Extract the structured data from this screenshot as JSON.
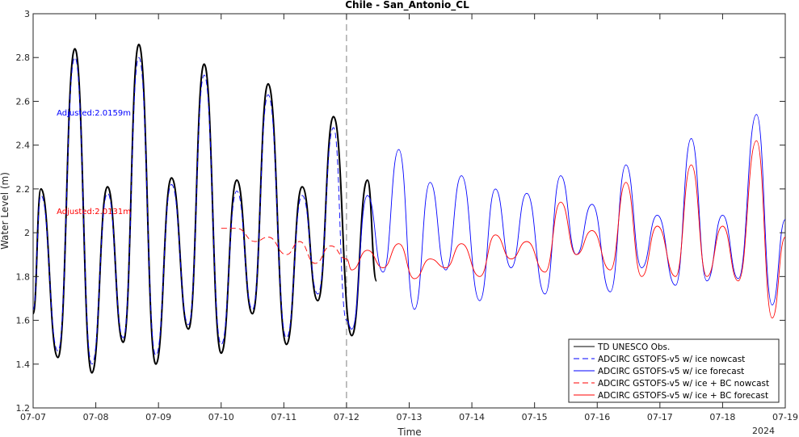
{
  "chart_data": {
    "type": "line",
    "title": "Chile - San_Antonio_CL",
    "xlabel": "Time",
    "ylabel": "Water Level (m)",
    "year_label": "2024",
    "x_ticks": [
      "07-07",
      "07-08",
      "07-09",
      "07-10",
      "07-11",
      "07-12",
      "07-13",
      "07-14",
      "07-15",
      "07-16",
      "07-17",
      "07-18",
      "07-19"
    ],
    "xlim": [
      "07-07",
      "07-19"
    ],
    "ylim": [
      1.2,
      3.0
    ],
    "y_ticks": [
      1.2,
      1.4,
      1.6,
      1.8,
      2.0,
      2.2,
      2.4,
      2.6,
      2.8,
      3.0
    ],
    "grid": false,
    "legend_position": "bottom-right",
    "forecast_start": "07-12",
    "annotations": [
      {
        "text": "Adjusted:2.0159m",
        "color": "#0000ff",
        "x": "07-07 09:00",
        "y": 2.55
      },
      {
        "text": "Adjusted:2.0131m",
        "color": "#ff0000",
        "x": "07-07 09:00",
        "y": 2.1
      }
    ],
    "series": [
      {
        "name": "TD UNESCO Obs.",
        "color": "#000000",
        "dash": "solid",
        "points": [
          [
            "07-07 00:00",
            1.63
          ],
          [
            "07-07 03:00",
            2.2
          ],
          [
            "07-07 09:30",
            1.43
          ],
          [
            "07-07 16:00",
            2.84
          ],
          [
            "07-07 22:30",
            1.36
          ],
          [
            "07-08 04:30",
            2.21
          ],
          [
            "07-08 10:30",
            1.5
          ],
          [
            "07-08 16:30",
            2.86
          ],
          [
            "07-08 23:00",
            1.4
          ],
          [
            "07-09 05:00",
            2.25
          ],
          [
            "07-09 11:30",
            1.56
          ],
          [
            "07-09 17:30",
            2.77
          ],
          [
            "07-10 00:00",
            1.45
          ],
          [
            "07-10 06:00",
            2.24
          ],
          [
            "07-10 12:00",
            1.63
          ],
          [
            "07-10 18:00",
            2.68
          ],
          [
            "07-11 01:00",
            1.49
          ],
          [
            "07-11 07:00",
            2.21
          ],
          [
            "07-11 13:00",
            1.69
          ],
          [
            "07-11 19:00",
            2.53
          ],
          [
            "07-12 02:00",
            1.53
          ],
          [
            "07-12 08:00",
            2.24
          ],
          [
            "07-12 11:30",
            1.78
          ]
        ]
      },
      {
        "name": "ADCIRC GSTOFS-v5 w/ ice nowcast",
        "color": "#0000ff",
        "dash": "dashed",
        "points": [
          [
            "07-07 00:00",
            1.65
          ],
          [
            "07-07 03:00",
            2.17
          ],
          [
            "07-07 09:30",
            1.46
          ],
          [
            "07-07 16:00",
            2.8
          ],
          [
            "07-07 22:30",
            1.4
          ],
          [
            "07-08 04:30",
            2.18
          ],
          [
            "07-08 10:30",
            1.52
          ],
          [
            "07-08 16:30",
            2.8
          ],
          [
            "07-08 23:00",
            1.44
          ],
          [
            "07-09 05:00",
            2.22
          ],
          [
            "07-09 11:30",
            1.58
          ],
          [
            "07-09 17:30",
            2.72
          ],
          [
            "07-10 00:00",
            1.49
          ],
          [
            "07-10 06:00",
            2.19
          ],
          [
            "07-10 12:00",
            1.65
          ],
          [
            "07-10 18:00",
            2.63
          ],
          [
            "07-11 01:00",
            1.52
          ],
          [
            "07-11 07:00",
            2.17
          ],
          [
            "07-11 13:00",
            1.72
          ],
          [
            "07-11 19:00",
            2.48
          ],
          [
            "07-12 00:00",
            1.6
          ]
        ]
      },
      {
        "name": "ADCIRC GSTOFS-v5 w/ ice forecast",
        "color": "#0000ff",
        "dash": "solid",
        "points": [
          [
            "07-12 00:00",
            1.6
          ],
          [
            "07-12 02:00",
            1.56
          ],
          [
            "07-12 08:00",
            2.17
          ],
          [
            "07-12 14:00",
            1.82
          ],
          [
            "07-12 20:00",
            2.38
          ],
          [
            "07-13 02:00",
            1.65
          ],
          [
            "07-13 08:00",
            2.23
          ],
          [
            "07-13 14:00",
            1.83
          ],
          [
            "07-13 20:00",
            2.26
          ],
          [
            "07-14 03:00",
            1.69
          ],
          [
            "07-14 09:00",
            2.2
          ],
          [
            "07-14 15:00",
            1.84
          ],
          [
            "07-14 21:00",
            2.18
          ],
          [
            "07-15 04:00",
            1.72
          ],
          [
            "07-15 10:00",
            2.26
          ],
          [
            "07-15 16:00",
            1.9
          ],
          [
            "07-15 22:00",
            2.13
          ],
          [
            "07-16 05:00",
            1.73
          ],
          [
            "07-16 11:00",
            2.31
          ],
          [
            "07-16 17:00",
            1.84
          ],
          [
            "07-16 23:00",
            2.08
          ],
          [
            "07-17 06:00",
            1.76
          ],
          [
            "07-17 12:00",
            2.43
          ],
          [
            "07-17 18:00",
            1.78
          ],
          [
            "07-18 00:00",
            2.08
          ],
          [
            "07-18 06:00",
            1.79
          ],
          [
            "07-18 13:00",
            2.54
          ],
          [
            "07-18 19:00",
            1.67
          ],
          [
            "07-19 00:00",
            2.06
          ]
        ]
      },
      {
        "name": "ADCIRC GSTOFS-v5 w/ ice + BC nowcast",
        "color": "#ff0000",
        "dash": "dashed",
        "points": [
          [
            "07-10 00:00",
            2.02
          ],
          [
            "07-10 06:00",
            2.02
          ],
          [
            "07-10 13:00",
            1.96
          ],
          [
            "07-10 18:00",
            1.98
          ],
          [
            "07-11 01:00",
            1.9
          ],
          [
            "07-11 06:00",
            1.96
          ],
          [
            "07-11 12:00",
            1.86
          ],
          [
            "07-11 18:00",
            1.94
          ],
          [
            "07-12 00:00",
            1.88
          ]
        ]
      },
      {
        "name": "ADCIRC GSTOFS-v5 w/ ice + BC forecast",
        "color": "#ff0000",
        "dash": "solid",
        "points": [
          [
            "07-12 00:00",
            1.88
          ],
          [
            "07-12 02:00",
            1.83
          ],
          [
            "07-12 08:00",
            1.92
          ],
          [
            "07-12 14:00",
            1.84
          ],
          [
            "07-12 20:00",
            1.95
          ],
          [
            "07-13 02:00",
            1.79
          ],
          [
            "07-13 08:00",
            1.88
          ],
          [
            "07-13 14:00",
            1.84
          ],
          [
            "07-13 20:00",
            1.95
          ],
          [
            "07-14 03:00",
            1.8
          ],
          [
            "07-14 09:00",
            1.99
          ],
          [
            "07-14 15:00",
            1.88
          ],
          [
            "07-14 21:00",
            1.96
          ],
          [
            "07-15 04:00",
            1.82
          ],
          [
            "07-15 10:00",
            2.14
          ],
          [
            "07-15 16:00",
            1.9
          ],
          [
            "07-15 22:00",
            2.01
          ],
          [
            "07-16 05:00",
            1.83
          ],
          [
            "07-16 11:00",
            2.23
          ],
          [
            "07-16 17:00",
            1.8
          ],
          [
            "07-16 23:00",
            2.03
          ],
          [
            "07-17 06:00",
            1.8
          ],
          [
            "07-17 12:00",
            2.31
          ],
          [
            "07-17 18:00",
            1.8
          ],
          [
            "07-18 00:00",
            2.03
          ],
          [
            "07-18 06:00",
            1.78
          ],
          [
            "07-18 13:00",
            2.42
          ],
          [
            "07-18 19:00",
            1.61
          ],
          [
            "07-19 00:00",
            1.98
          ]
        ]
      }
    ]
  }
}
